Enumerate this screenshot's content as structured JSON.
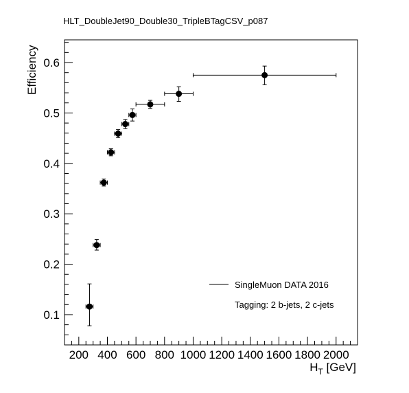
{
  "chart_data": {
    "type": "scatter",
    "title": "HLT_DoubleJet90_Double30_TripleBTagCSV_p087",
    "xlabel": "H",
    "xlabel_sub": "T",
    "xlabel_unit": " [GeV]",
    "ylabel": "Efficiency",
    "xlim": [
      100,
      2150
    ],
    "ylim": [
      0.04,
      0.645
    ],
    "x_ticks": [
      200,
      400,
      600,
      800,
      1000,
      1200,
      1400,
      1600,
      1800,
      2000
    ],
    "y_ticks": [
      0.1,
      0.2,
      0.3,
      0.4,
      0.5,
      0.6
    ],
    "x_tick_labels": [
      "200",
      "400",
      "600",
      "800",
      "1000",
      "1200",
      "1400",
      "1600",
      "1800",
      "2000"
    ],
    "y_tick_labels": [
      "0.1",
      "0.2",
      "0.3",
      "0.4",
      "0.5",
      "0.6"
    ],
    "grid": false,
    "legend_position": "bottom-right",
    "series": [
      {
        "name": "SingleMuon DATA 2016",
        "points": [
          {
            "x": 275,
            "xlo": 250,
            "xhi": 300,
            "y": 0.116,
            "ylo": 0.078,
            "yhi": 0.161
          },
          {
            "x": 325,
            "xlo": 300,
            "xhi": 350,
            "y": 0.238,
            "ylo": 0.228,
            "yhi": 0.249
          },
          {
            "x": 375,
            "xlo": 350,
            "xhi": 400,
            "y": 0.362,
            "ylo": 0.355,
            "yhi": 0.369
          },
          {
            "x": 425,
            "xlo": 400,
            "xhi": 450,
            "y": 0.422,
            "ylo": 0.415,
            "yhi": 0.429
          },
          {
            "x": 475,
            "xlo": 450,
            "xhi": 500,
            "y": 0.459,
            "ylo": 0.451,
            "yhi": 0.467
          },
          {
            "x": 525,
            "xlo": 500,
            "xhi": 550,
            "y": 0.478,
            "ylo": 0.469,
            "yhi": 0.487
          },
          {
            "x": 575,
            "xlo": 550,
            "xhi": 600,
            "y": 0.496,
            "ylo": 0.484,
            "yhi": 0.508
          },
          {
            "x": 700,
            "xlo": 600,
            "xhi": 800,
            "y": 0.517,
            "ylo": 0.509,
            "yhi": 0.525
          },
          {
            "x": 900,
            "xlo": 800,
            "xhi": 1000,
            "y": 0.538,
            "ylo": 0.523,
            "yhi": 0.552
          },
          {
            "x": 1500,
            "xlo": 1000,
            "xhi": 2000,
            "y": 0.575,
            "ylo": 0.556,
            "yhi": 0.593
          }
        ]
      }
    ],
    "annotations": [
      "Tagging: 2 b-jets, 2 c-jets"
    ]
  }
}
